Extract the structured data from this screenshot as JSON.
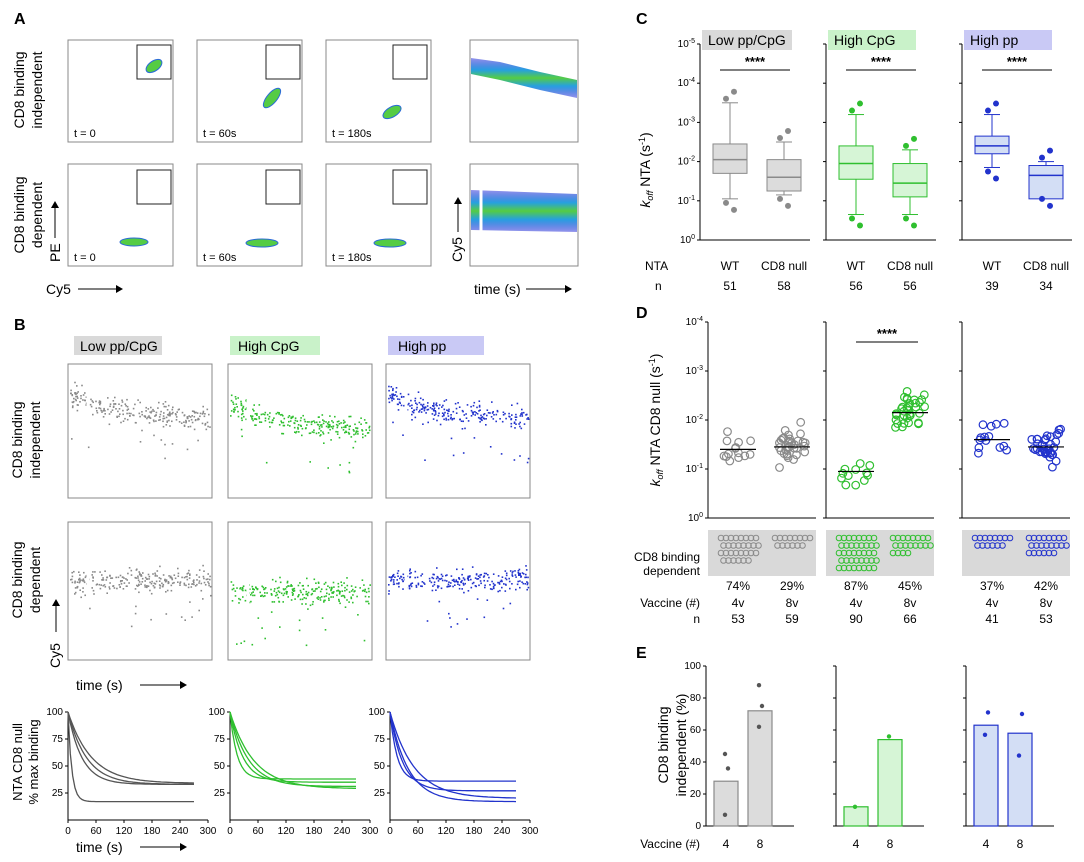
{
  "panels": {
    "A": "A",
    "B": "B",
    "C": "C",
    "D": "D",
    "E": "E"
  },
  "colors": {
    "gray": "#8a8a8a",
    "green": "#2fbf2f",
    "blue": "#2233cc",
    "gray_bg": "#d9d9d9",
    "green_bg": "#c9f2c9",
    "blue_bg": "#c9c9f5",
    "gray_fill": "#dcdcdc",
    "green_fill": "#d6f5d6",
    "blue_fill": "#d3def5"
  },
  "groups": [
    "Low pp/CpG",
    "High CpG",
    "High pp"
  ],
  "panelA": {
    "row1_label": [
      "CD8 binding",
      "independent"
    ],
    "row2_label": [
      "CD8 binding",
      "dependent"
    ],
    "times": [
      "t = 0",
      "t = 60s",
      "t = 180s"
    ],
    "x_axis": "Cy5",
    "y_axis": "PE",
    "ts_x": "time (s)",
    "ts_y": "Cy5"
  },
  "panelB": {
    "row1_label": [
      "CD8 binding",
      "independent"
    ],
    "row2_label": [
      "CD8 binding",
      "dependent"
    ],
    "y_axis": "Cy5",
    "x_axis": "time (s)"
  },
  "panelB_curves": {
    "ylabel": [
      "NTA CD8 null",
      "% max binding"
    ],
    "xlabel": "time (s)",
    "x_ticks": [
      "0",
      "60",
      "120",
      "180",
      "240",
      "300"
    ],
    "y_ticks": [
      "100",
      "75",
      "50",
      "25"
    ],
    "plateaus": [
      [
        33,
        33,
        34,
        17
      ],
      [
        38,
        35,
        31,
        29
      ],
      [
        36,
        27,
        17,
        20
      ]
    ]
  },
  "chart_data": [
    {
      "panel": "C",
      "type": "box",
      "ylabel": "koff NTA (s-1)",
      "y_ticks": [
        "10-5",
        "10-4",
        "10-3",
        "10-2",
        "10-1",
        "100"
      ],
      "row_labels": [
        "NTA",
        "n"
      ],
      "significance": "****",
      "groups": [
        {
          "name": "Low pp/CpG",
          "categories": [
            "WT",
            "CD8 null"
          ],
          "n": [
            "51",
            "58"
          ],
          "medians_log": [
            -2.05,
            -1.6
          ],
          "q1": [
            -1.7,
            -1.25
          ],
          "q3": [
            -2.45,
            -2.05
          ],
          "w_low": [
            -1.05,
            -1.15
          ],
          "w_high": [
            -3.5,
            -2.5
          ]
        },
        {
          "name": "High CpG",
          "categories": [
            "WT",
            "CD8 null"
          ],
          "n": [
            "56",
            "56"
          ],
          "medians_log": [
            -1.95,
            -1.45
          ],
          "q1": [
            -1.55,
            -1.1
          ],
          "q3": [
            -2.4,
            -1.95
          ],
          "w_low": [
            -0.65,
            -0.65
          ],
          "w_high": [
            -3.2,
            -2.3
          ]
        },
        {
          "name": "High pp",
          "categories": [
            "WT",
            "CD8 null"
          ],
          "n": [
            "39",
            "34"
          ],
          "medians_log": [
            -2.4,
            -1.65
          ],
          "q1": [
            -2.2,
            -1.05
          ],
          "q3": [
            -2.65,
            -1.9
          ],
          "w_low": [
            -1.85,
            -1.15
          ],
          "w_high": [
            -3.2,
            -2.0
          ]
        }
      ]
    },
    {
      "panel": "D",
      "type": "scatter",
      "ylabel": "koff NTA CD8 null (s-1)",
      "y_ticks": [
        "10-4",
        "10-3",
        "10-2",
        "10-1",
        "100"
      ],
      "significance": "****",
      "dependent_label": [
        "CD8 binding",
        "dependent"
      ],
      "percentages": [
        [
          "74%",
          "29%"
        ],
        [
          "87%",
          "45%"
        ],
        [
          "37%",
          "42%"
        ]
      ],
      "vaccine_label": "Vaccine (#)",
      "vaccine": [
        "4v",
        "8v"
      ],
      "n_label": "n",
      "n": [
        [
          "53",
          "59"
        ],
        [
          "90",
          "66"
        ],
        [
          "41",
          "53"
        ]
      ],
      "means_log": [
        [
          -1.4,
          -1.45
        ],
        [
          -0.95,
          -2.15
        ],
        [
          -1.6,
          -1.45
        ]
      ]
    },
    {
      "panel": "E",
      "type": "bar",
      "ylabel": [
        "CD8 binding",
        "independent (%)"
      ],
      "y_ticks": [
        "0",
        "20",
        "40",
        "60",
        "80",
        "100"
      ],
      "ylim": [
        0,
        100
      ],
      "xlabel": "Vaccine (#)",
      "categories": [
        "4",
        "8"
      ],
      "groups": [
        {
          "name": "Low pp/CpG",
          "values": [
            28,
            72
          ],
          "points": [
            [
              7,
              36,
              45
            ],
            [
              62,
              75,
              88
            ]
          ]
        },
        {
          "name": "High CpG",
          "values": [
            12,
            54
          ],
          "points": [
            [
              12
            ],
            [
              56
            ]
          ]
        },
        {
          "name": "High pp",
          "values": [
            63,
            58
          ],
          "points": [
            [
              57,
              71
            ],
            [
              44,
              70
            ]
          ]
        }
      ]
    }
  ]
}
